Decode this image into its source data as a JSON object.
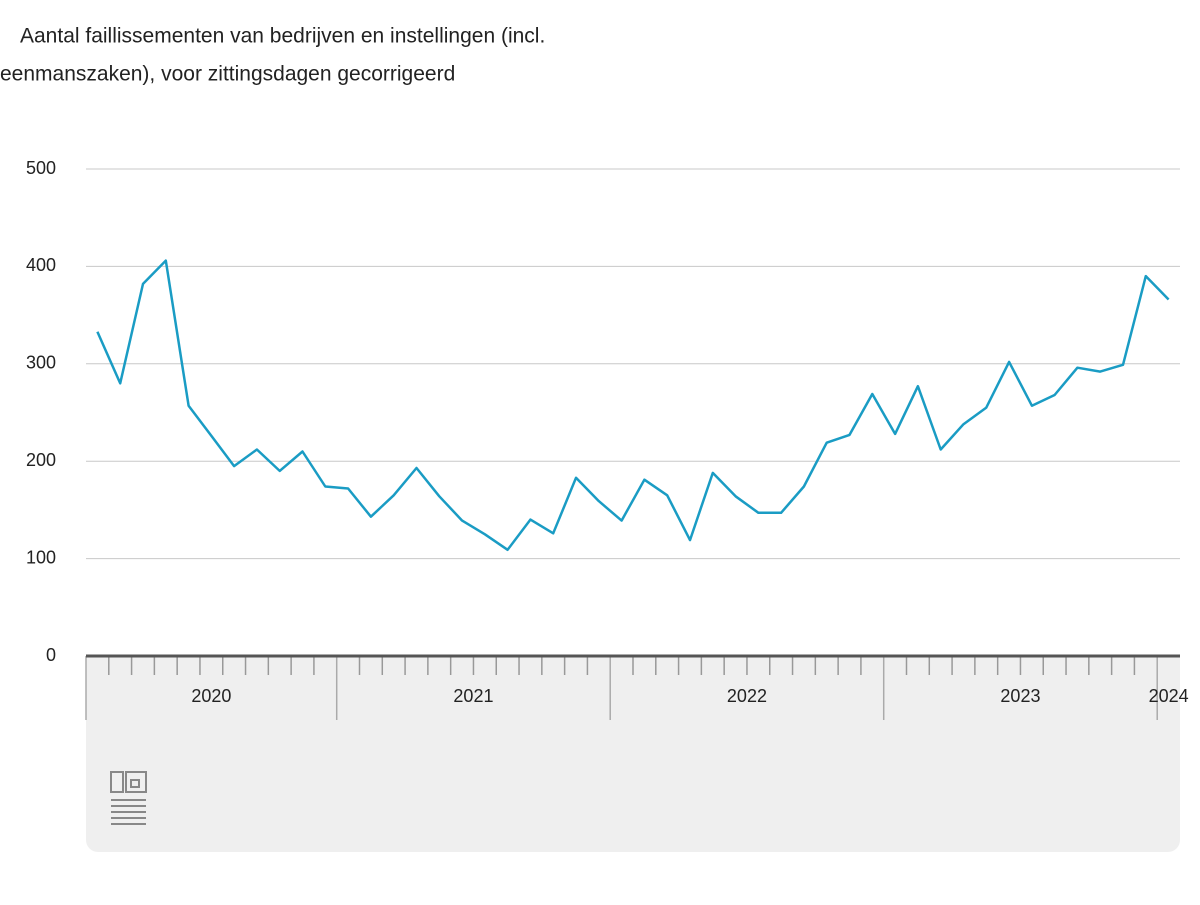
{
  "chart_data": {
    "type": "line",
    "title": [
      "Aantal faillissementen van bedrijven en instellingen (incl.",
      "eenmanszaken), voor zittingsdagen gecorrigeerd"
    ],
    "year_labels": [
      "2020",
      "2021",
      "2022",
      "2023",
      "2024"
    ],
    "series": [
      {
        "color": "#1a9cc4",
        "values": [
          333,
          280,
          382,
          406,
          257,
          226,
          195,
          212,
          190,
          210,
          174,
          172,
          143,
          165,
          193,
          164,
          139,
          125,
          109,
          140,
          126,
          183,
          159,
          139,
          181,
          165,
          119,
          188,
          164,
          147,
          147,
          174,
          219,
          227,
          269,
          228,
          277,
          212,
          238,
          255,
          302,
          257,
          268,
          296,
          292,
          299,
          390,
          366
        ]
      }
    ],
    "ylim": [
      0,
      500
    ],
    "yticks": [
      0,
      100,
      200,
      300,
      400,
      500
    ],
    "grid": true
  }
}
